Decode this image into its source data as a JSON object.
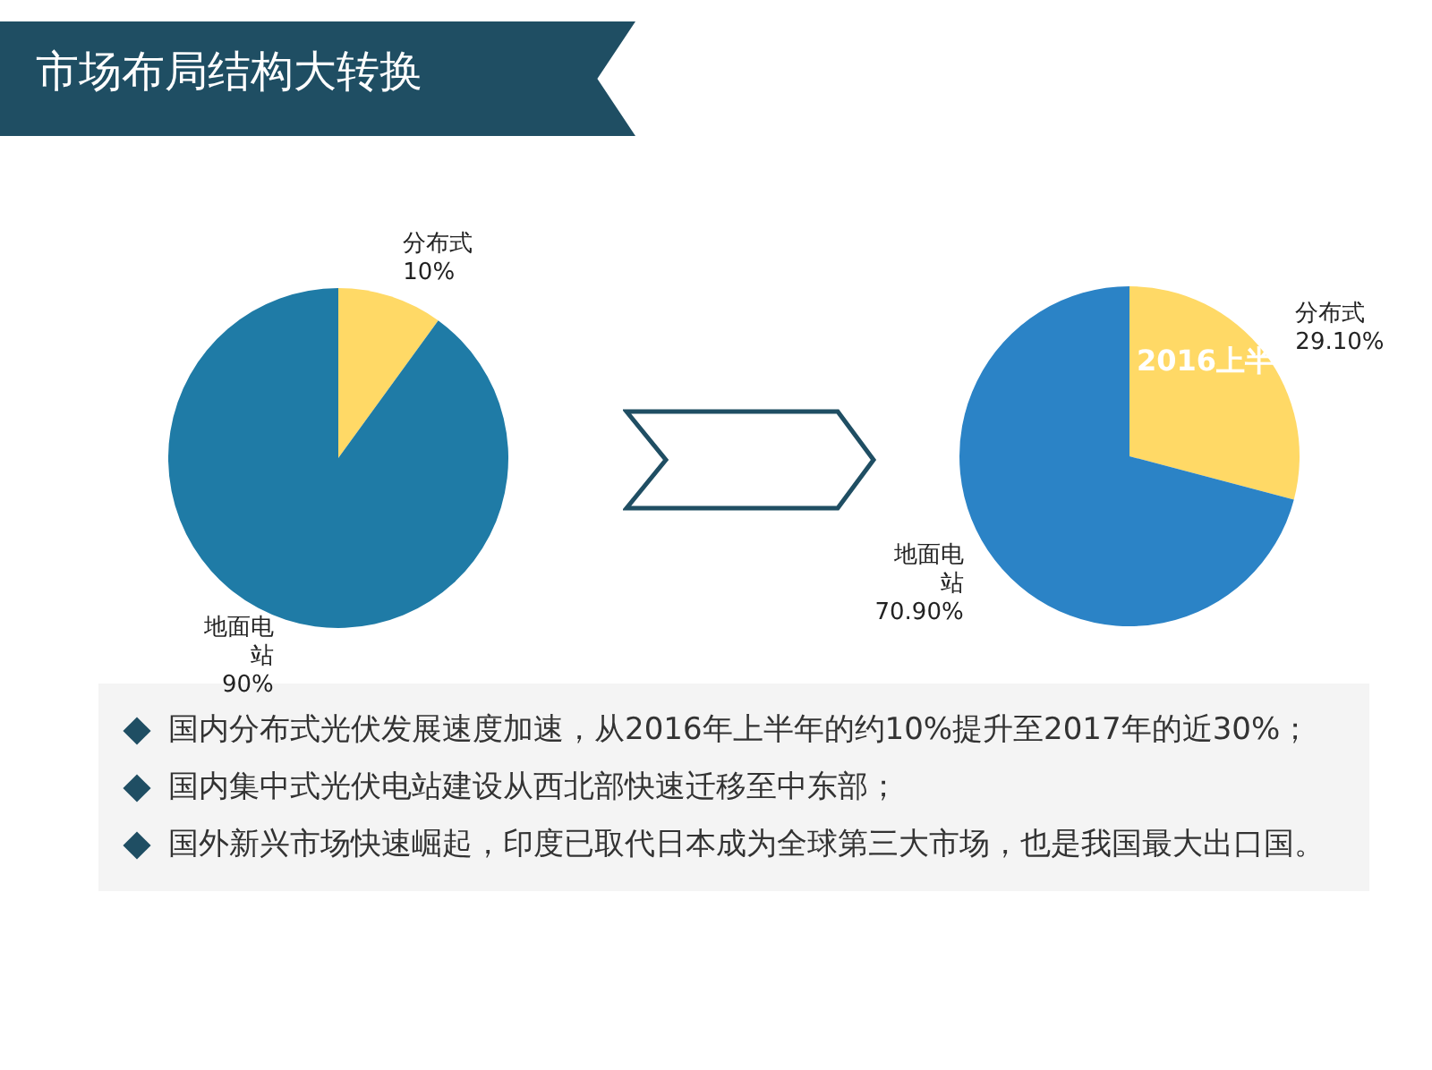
{
  "chart_data": [
    {
      "type": "pie",
      "categories": [
        "分布式",
        "地面电站"
      ],
      "values": [
        10,
        90
      ],
      "value_labels": [
        "10%",
        "90%"
      ],
      "colors": [
        "#ffd966",
        "#1f7ba6"
      ]
    },
    {
      "type": "pie",
      "categories": [
        "分布式",
        "地面电站"
      ],
      "values": [
        29.1,
        70.9
      ],
      "value_labels": [
        "29.10%",
        "70.90%"
      ],
      "colors": [
        "#ffd966",
        "#2b83c6"
      ],
      "annotations": [
        "2016上半"
      ]
    },
    {
      "type": "other",
      "title": "市场布局结构大转换",
      "annotations": [
        "国内分布式光伏发展速度加速，从2016年上半年的约10%提升至2017年的近30%；",
        "国内集中式光伏电站建设从西北部快速迁移至中东部；",
        "国外新兴市场快速崛起，印度已取代日本成为全球第三大市场，也是我国最大出口国。"
      ]
    }
  ]
}
